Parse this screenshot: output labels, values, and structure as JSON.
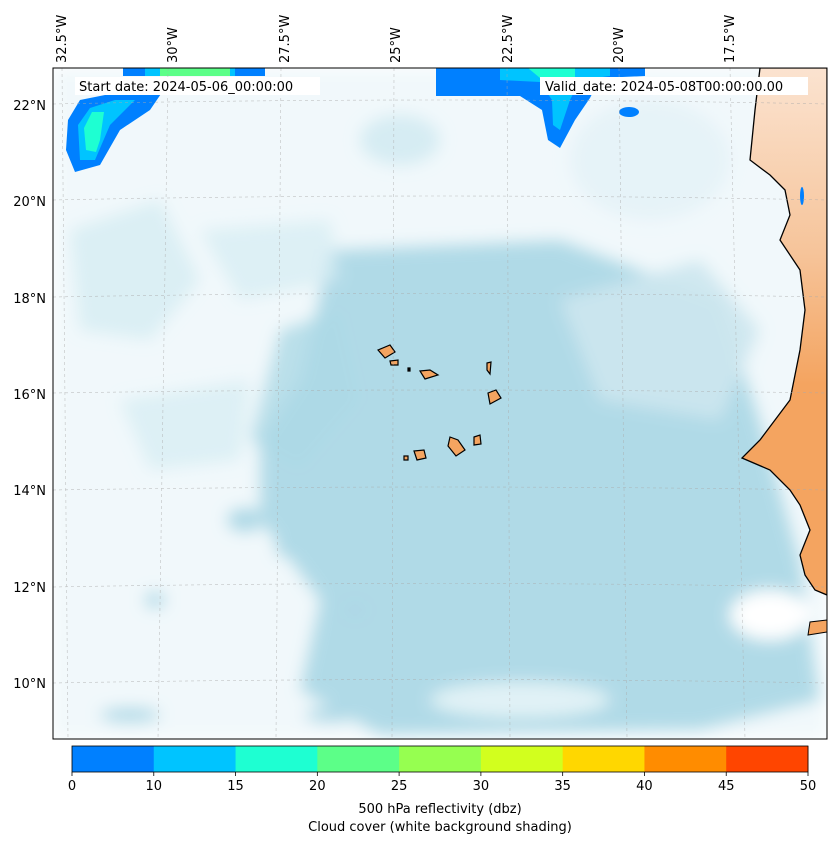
{
  "map": {
    "start_date": "Start date: 2024-05-06_00:00:00",
    "valid_date": "Valid_date: 2024-05-08T00:00:00.00",
    "lon_labels": [
      "32.5°W",
      "30°W",
      "27.5°W",
      "25°W",
      "22.5°W",
      "20°W",
      "17.5°W"
    ],
    "lat_labels": [
      "22°N",
      "20°N",
      "18°N",
      "16°N",
      "14°N",
      "12°N",
      "10°N"
    ],
    "colors": {
      "land": "#f4a460",
      "cloud": "#add8e6",
      "coast": "#000000"
    }
  },
  "colorbar": {
    "label_line1": "500 hPa reflectivity (dbz)",
    "label_line2": "Cloud cover (white background shading)",
    "ticks": [
      "0",
      "10",
      "15",
      "20",
      "25",
      "30",
      "35",
      "40",
      "45",
      "50"
    ],
    "colors": [
      "#0080ff",
      "#00c4ff",
      "#1effd2",
      "#5cff88",
      "#96ff50",
      "#d2ff1e",
      "#ffd700",
      "#ff8c00",
      "#ff4500"
    ]
  }
}
